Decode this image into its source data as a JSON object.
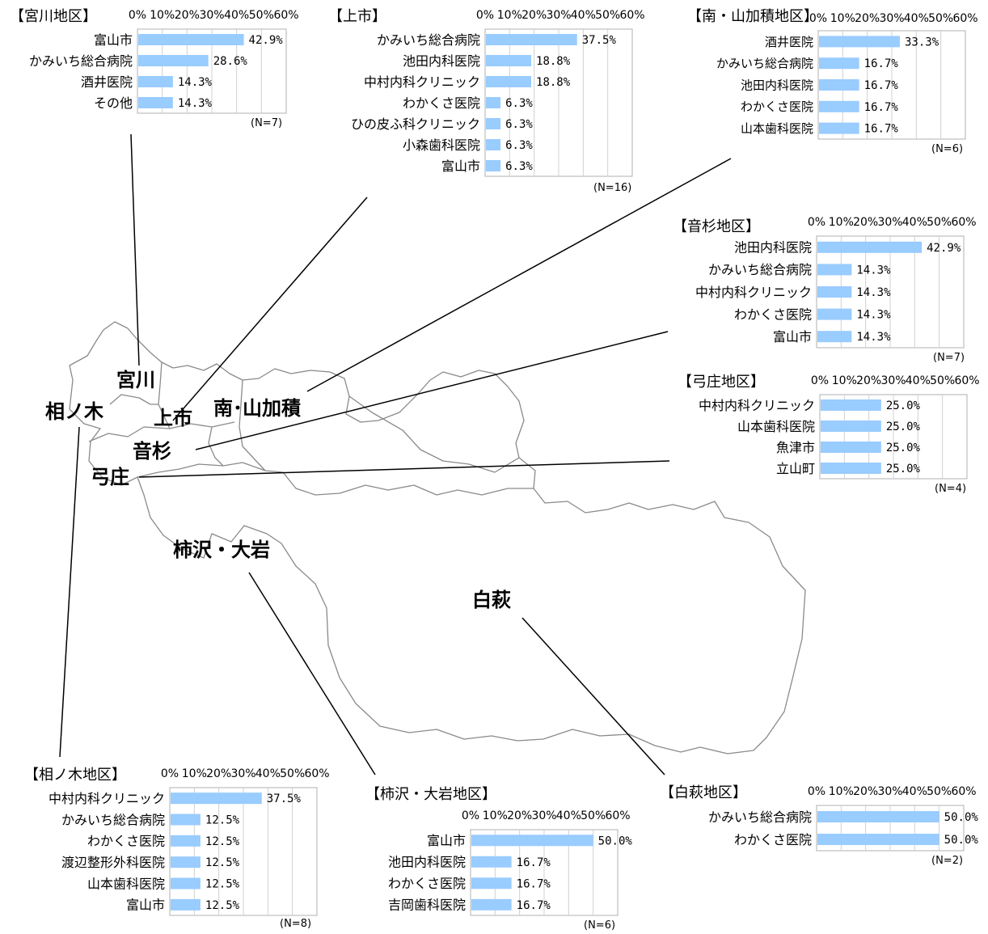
{
  "axis_ticks": [
    "0%",
    "10%",
    "20%",
    "30%",
    "40%",
    "50%",
    "60%"
  ],
  "colors": {
    "bar": "#99ccff",
    "grid": "#d0d0d0",
    "frame": "#b0b0b0",
    "map_line": "#8a8a8a",
    "text": "#000000"
  },
  "map_labels": {
    "miyakawa": "宮川",
    "ainoki": "相ノ木",
    "kamiichi": "上市",
    "minami": "南･山加積",
    "otosugi": "音杉",
    "yumisho": "弓庄",
    "kakizawa": "柿沢・大岩",
    "shirahagi": "白萩"
  },
  "chart_data": [
    {
      "id": "miyakawa",
      "type": "bar",
      "orientation": "horizontal",
      "title": "【宮川地区】",
      "n_label": "(N=7)",
      "xlim": [
        0,
        60
      ],
      "categories": [
        "富山市",
        "かみいち総合病院",
        "酒井医院",
        "その他"
      ],
      "values": [
        42.9,
        28.6,
        14.3,
        14.3
      ],
      "value_labels": [
        "42.9%",
        "28.6%",
        "14.3%",
        "14.3%"
      ]
    },
    {
      "id": "kamiichi",
      "type": "bar",
      "orientation": "horizontal",
      "title": "【上市】",
      "n_label": "(N=16)",
      "xlim": [
        0,
        60
      ],
      "categories": [
        "かみいち総合病院",
        "池田内科医院",
        "中村内科クリニック",
        "わかくさ医院",
        "ひの皮ふ科クリニック",
        "小森歯科医院",
        "富山市"
      ],
      "values": [
        37.5,
        18.8,
        18.8,
        6.3,
        6.3,
        6.3,
        6.3
      ],
      "value_labels": [
        "37.5%",
        "18.8%",
        "18.8%",
        "6.3%",
        "6.3%",
        "6.3%",
        "6.3%"
      ]
    },
    {
      "id": "minami",
      "type": "bar",
      "orientation": "horizontal",
      "title": "【南・山加積地区】",
      "n_label": "(N=6)",
      "xlim": [
        0,
        60
      ],
      "categories": [
        "酒井医院",
        "かみいち総合病院",
        "池田内科医院",
        "わかくさ医院",
        "山本歯科医院"
      ],
      "values": [
        33.3,
        16.7,
        16.7,
        16.7,
        16.7
      ],
      "value_labels": [
        "33.3%",
        "16.7%",
        "16.7%",
        "16.7%",
        "16.7%"
      ]
    },
    {
      "id": "otosugi",
      "type": "bar",
      "orientation": "horizontal",
      "title": "【音杉地区】",
      "n_label": "(N=7)",
      "xlim": [
        0,
        60
      ],
      "categories": [
        "池田内科医院",
        "かみいち総合病院",
        "中村内科クリニック",
        "わかくさ医院",
        "富山市"
      ],
      "values": [
        42.9,
        14.3,
        14.3,
        14.3,
        14.3
      ],
      "value_labels": [
        "42.9%",
        "14.3%",
        "14.3%",
        "14.3%",
        "14.3%"
      ]
    },
    {
      "id": "yumisho",
      "type": "bar",
      "orientation": "horizontal",
      "title": "【弓庄地区】",
      "n_label": "(N=4)",
      "xlim": [
        0,
        60
      ],
      "categories": [
        "中村内科クリニック",
        "山本歯科医院",
        "魚津市",
        "立山町"
      ],
      "values": [
        25.0,
        25.0,
        25.0,
        25.0
      ],
      "value_labels": [
        "25.0%",
        "25.0%",
        "25.0%",
        "25.0%"
      ]
    },
    {
      "id": "ainoki",
      "type": "bar",
      "orientation": "horizontal",
      "title": "【相ノ木地区】",
      "n_label": "(N=8)",
      "xlim": [
        0,
        60
      ],
      "categories": [
        "中村内科クリニック",
        "かみいち総合病院",
        "わかくさ医院",
        "渡辺整形外科医院",
        "山本歯科医院",
        "富山市"
      ],
      "values": [
        37.5,
        12.5,
        12.5,
        12.5,
        12.5,
        12.5
      ],
      "value_labels": [
        "37.5%",
        "12.5%",
        "12.5%",
        "12.5%",
        "12.5%",
        "12.5%"
      ]
    },
    {
      "id": "kakizawa",
      "type": "bar",
      "orientation": "horizontal",
      "title": "【柿沢・大岩地区】",
      "n_label": "(N=6)",
      "xlim": [
        0,
        60
      ],
      "categories": [
        "富山市",
        "池田内科医院",
        "わかくさ医院",
        "吉岡歯科医院"
      ],
      "values": [
        50.0,
        16.7,
        16.7,
        16.7
      ],
      "value_labels": [
        "50.0%",
        "16.7%",
        "16.7%",
        "16.7%"
      ]
    },
    {
      "id": "shirahagi",
      "type": "bar",
      "orientation": "horizontal",
      "title": "【白萩地区】",
      "n_label": "(N=2)",
      "xlim": [
        0,
        60
      ],
      "categories": [
        "かみいち総合病院",
        "わかくさ医院"
      ],
      "values": [
        50.0,
        50.0
      ],
      "value_labels": [
        "50.0%",
        "50.0%"
      ]
    }
  ]
}
